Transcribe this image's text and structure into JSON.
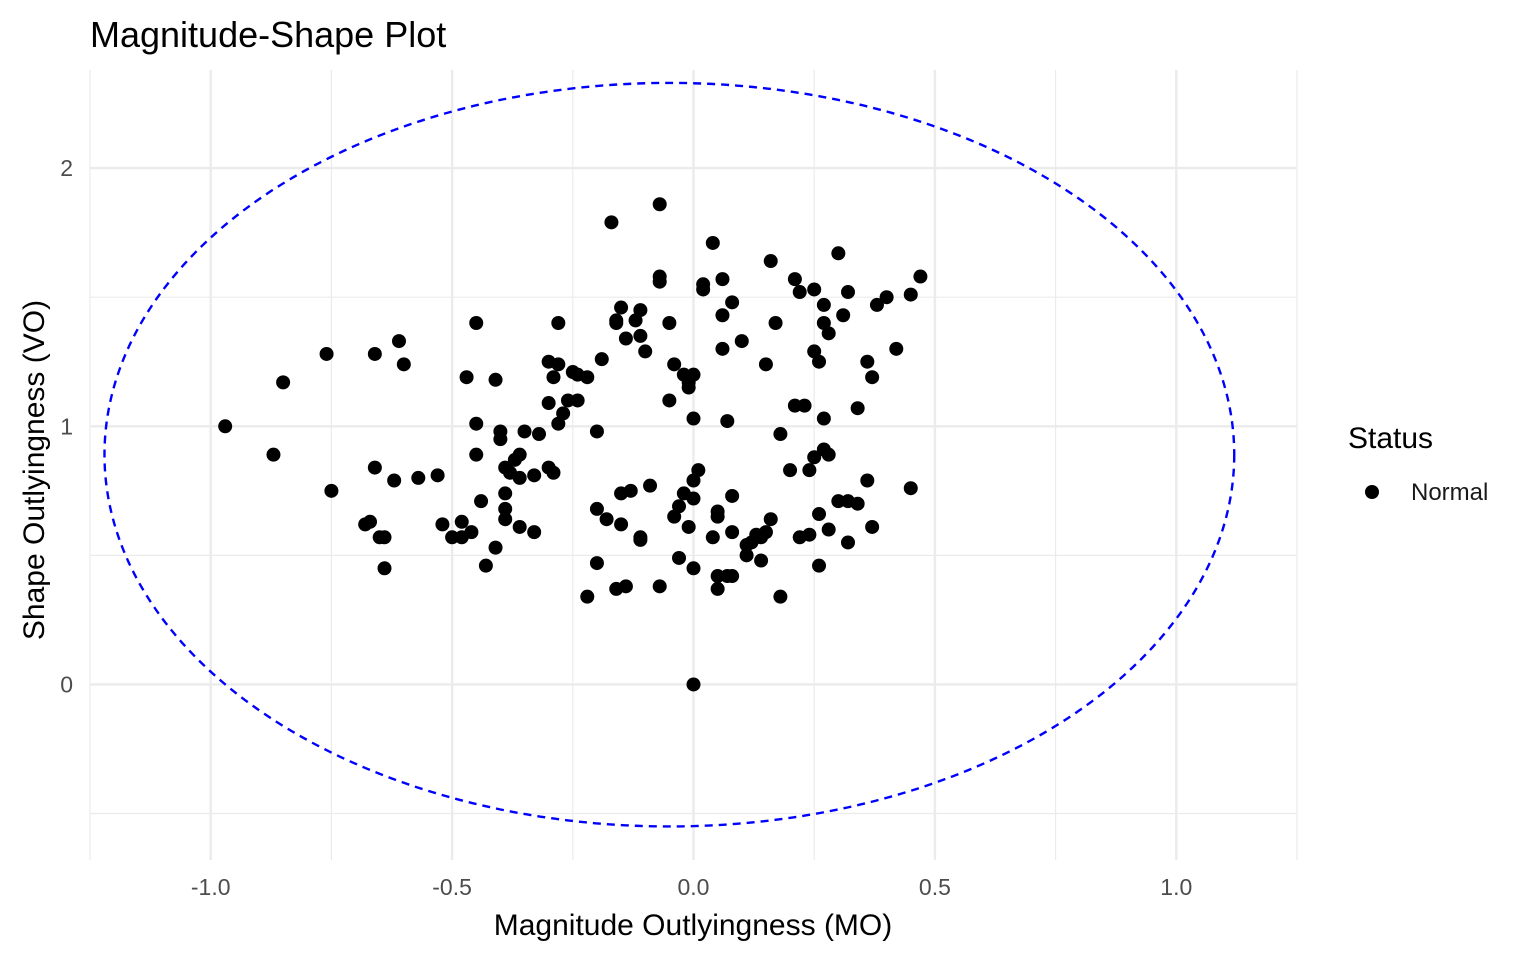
{
  "chart_data": {
    "type": "scatter",
    "title": "Magnitude-Shape Plot",
    "xlabel": "Magnitude Outlyingness (MO)",
    "ylabel": "Shape Outlyingness (VO)",
    "xlim": [
      -1.25,
      1.25
    ],
    "ylim": [
      -0.68,
      2.38
    ],
    "x_ticks": [
      -1.0,
      -0.5,
      0.0,
      0.5,
      1.0
    ],
    "x_tick_labels": [
      "-1.0",
      "-0.5",
      "0.0",
      "0.5",
      "1.0"
    ],
    "y_ticks": [
      0,
      1,
      2
    ],
    "y_tick_labels": [
      "0",
      "1",
      "2"
    ],
    "grid": true,
    "legend": {
      "title": "Status",
      "position": "right",
      "entries": [
        "Normal"
      ]
    },
    "colors": {
      "points": "#000000",
      "ellipse": "#0000ff",
      "grid": "#ebebeb"
    },
    "ellipse": {
      "cx": -0.05,
      "cy": 0.89,
      "rx": 1.17,
      "ry": 1.44,
      "style": "dashed"
    },
    "series": [
      {
        "name": "Normal",
        "points": [
          [
            -0.97,
            1.0
          ],
          [
            -0.87,
            0.89
          ],
          [
            -0.85,
            1.17
          ],
          [
            -0.76,
            1.28
          ],
          [
            -0.75,
            0.75
          ],
          [
            -0.68,
            0.62
          ],
          [
            -0.67,
            0.63
          ],
          [
            -0.66,
            1.28
          ],
          [
            -0.66,
            0.84
          ],
          [
            -0.65,
            0.57
          ],
          [
            -0.64,
            0.57
          ],
          [
            -0.64,
            0.45
          ],
          [
            -0.62,
            0.79
          ],
          [
            -0.61,
            1.33
          ],
          [
            -0.6,
            1.24
          ],
          [
            -0.57,
            0.8
          ],
          [
            -0.53,
            0.81
          ],
          [
            -0.52,
            0.62
          ],
          [
            -0.5,
            0.57
          ],
          [
            -0.48,
            0.63
          ],
          [
            -0.48,
            0.57
          ],
          [
            -0.47,
            1.19
          ],
          [
            -0.46,
            0.59
          ],
          [
            -0.45,
            1.4
          ],
          [
            -0.45,
            1.01
          ],
          [
            -0.45,
            0.89
          ],
          [
            -0.44,
            0.71
          ],
          [
            -0.43,
            0.46
          ],
          [
            -0.41,
            1.18
          ],
          [
            -0.41,
            0.53
          ],
          [
            -0.4,
            0.95
          ],
          [
            -0.4,
            0.98
          ],
          [
            -0.39,
            0.84
          ],
          [
            -0.39,
            0.74
          ],
          [
            -0.39,
            0.68
          ],
          [
            -0.39,
            0.64
          ],
          [
            -0.38,
            0.82
          ],
          [
            -0.37,
            0.87
          ],
          [
            -0.36,
            0.8
          ],
          [
            -0.36,
            0.89
          ],
          [
            -0.36,
            0.61
          ],
          [
            -0.35,
            0.98
          ],
          [
            -0.33,
            0.81
          ],
          [
            -0.33,
            0.59
          ],
          [
            -0.32,
            0.97
          ],
          [
            -0.3,
            0.84
          ],
          [
            -0.3,
            1.25
          ],
          [
            -0.3,
            1.09
          ],
          [
            -0.29,
            1.19
          ],
          [
            -0.29,
            0.82
          ],
          [
            -0.28,
            1.01
          ],
          [
            -0.28,
            1.24
          ],
          [
            -0.28,
            1.4
          ],
          [
            -0.27,
            1.05
          ],
          [
            -0.26,
            1.1
          ],
          [
            -0.25,
            1.21
          ],
          [
            -0.24,
            1.1
          ],
          [
            -0.24,
            1.2
          ],
          [
            -0.22,
            1.19
          ],
          [
            -0.22,
            0.34
          ],
          [
            -0.2,
            0.98
          ],
          [
            -0.2,
            0.47
          ],
          [
            -0.2,
            0.68
          ],
          [
            -0.19,
            1.26
          ],
          [
            -0.18,
            0.64
          ],
          [
            -0.17,
            1.79
          ],
          [
            -0.16,
            1.41
          ],
          [
            -0.16,
            1.4
          ],
          [
            -0.16,
            0.37
          ],
          [
            -0.15,
            0.74
          ],
          [
            -0.15,
            1.46
          ],
          [
            -0.15,
            0.62
          ],
          [
            -0.14,
            0.38
          ],
          [
            -0.14,
            1.34
          ],
          [
            -0.13,
            0.75
          ],
          [
            -0.12,
            1.41
          ],
          [
            -0.11,
            1.45
          ],
          [
            -0.11,
            1.35
          ],
          [
            -0.11,
            0.57
          ],
          [
            -0.11,
            0.56
          ],
          [
            -0.1,
            1.29
          ],
          [
            -0.09,
            0.77
          ],
          [
            -0.07,
            1.56
          ],
          [
            -0.07,
            1.58
          ],
          [
            -0.07,
            1.86
          ],
          [
            -0.07,
            0.38
          ],
          [
            -0.05,
            1.4
          ],
          [
            -0.05,
            1.1
          ],
          [
            -0.04,
            1.24
          ],
          [
            -0.04,
            0.65
          ],
          [
            -0.03,
            0.69
          ],
          [
            -0.03,
            0.49
          ],
          [
            -0.02,
            1.2
          ],
          [
            -0.02,
            0.74
          ],
          [
            -0.01,
            1.15
          ],
          [
            -0.01,
            0.61
          ],
          [
            -0.01,
            1.17
          ],
          [
            0.0,
            1.03
          ],
          [
            0.0,
            0.79
          ],
          [
            0.0,
            0.45
          ],
          [
            0.0,
            0.72
          ],
          [
            0.0,
            1.2
          ],
          [
            0.01,
            0.83
          ],
          [
            0.02,
            1.53
          ],
          [
            0.02,
            1.55
          ],
          [
            0.04,
            1.71
          ],
          [
            0.04,
            0.57
          ],
          [
            0.05,
            0.42
          ],
          [
            0.05,
            0.65
          ],
          [
            0.05,
            0.67
          ],
          [
            0.05,
            0.37
          ],
          [
            0.06,
            1.57
          ],
          [
            0.06,
            1.43
          ],
          [
            0.06,
            1.3
          ],
          [
            0.07,
            1.02
          ],
          [
            0.07,
            0.42
          ],
          [
            0.08,
            0.73
          ],
          [
            0.08,
            1.48
          ],
          [
            0.08,
            0.59
          ],
          [
            0.08,
            0.42
          ],
          [
            0.1,
            1.33
          ],
          [
            0.11,
            0.54
          ],
          [
            0.11,
            0.5
          ],
          [
            0.12,
            0.55
          ],
          [
            0.13,
            0.58
          ],
          [
            0.14,
            0.57
          ],
          [
            0.14,
            0.48
          ],
          [
            0.15,
            0.59
          ],
          [
            0.15,
            1.24
          ],
          [
            0.16,
            1.64
          ],
          [
            0.16,
            0.64
          ],
          [
            0.17,
            1.4
          ],
          [
            0.18,
            0.97
          ],
          [
            0.18,
            0.34
          ],
          [
            0.2,
            0.83
          ],
          [
            0.21,
            1.57
          ],
          [
            0.21,
            1.08
          ],
          [
            0.22,
            1.52
          ],
          [
            0.22,
            0.57
          ],
          [
            0.23,
            1.08
          ],
          [
            0.24,
            0.58
          ],
          [
            0.24,
            0.83
          ],
          [
            0.25,
            1.29
          ],
          [
            0.25,
            0.88
          ],
          [
            0.25,
            1.53
          ],
          [
            0.26,
            1.25
          ],
          [
            0.26,
            0.66
          ],
          [
            0.26,
            0.46
          ],
          [
            0.27,
            1.4
          ],
          [
            0.27,
            1.03
          ],
          [
            0.27,
            0.91
          ],
          [
            0.27,
            1.47
          ],
          [
            0.28,
            1.36
          ],
          [
            0.28,
            0.89
          ],
          [
            0.28,
            0.6
          ],
          [
            0.3,
            0.71
          ],
          [
            0.3,
            1.67
          ],
          [
            0.31,
            1.43
          ],
          [
            0.32,
            0.71
          ],
          [
            0.32,
            1.52
          ],
          [
            0.32,
            0.55
          ],
          [
            0.34,
            0.7
          ],
          [
            0.34,
            1.07
          ],
          [
            0.36,
            1.25
          ],
          [
            0.36,
            0.79
          ],
          [
            0.37,
            1.19
          ],
          [
            0.37,
            0.61
          ],
          [
            0.38,
            1.47
          ],
          [
            0.4,
            1.5
          ],
          [
            0.42,
            1.3
          ],
          [
            0.45,
            1.51
          ],
          [
            0.45,
            0.76
          ],
          [
            0.47,
            1.58
          ],
          [
            0.0,
            0.0
          ]
        ]
      }
    ]
  }
}
